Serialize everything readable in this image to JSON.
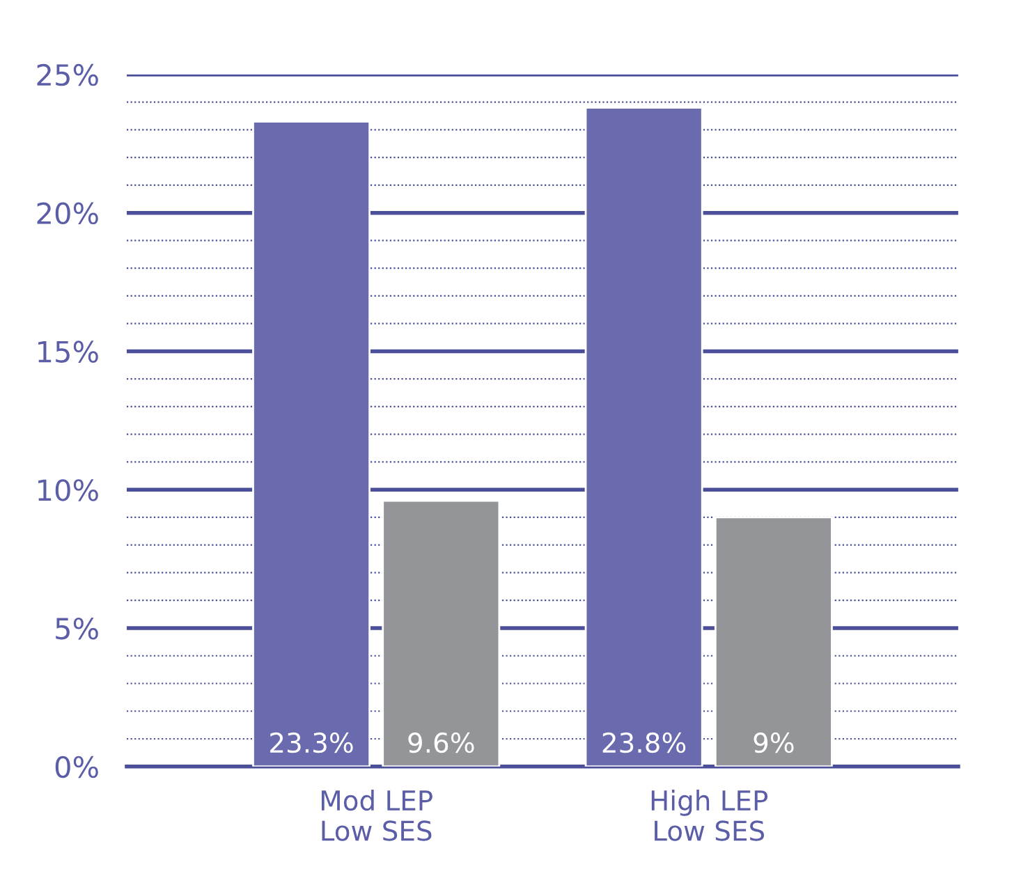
{
  "chart_data": {
    "type": "bar",
    "categories": [
      "Mod LEP\nLow SES",
      "High LEP\nLow SES"
    ],
    "series": [
      {
        "color": "#6a6aae",
        "values": [
          23.3,
          23.8
        ],
        "value_labels": [
          "23.3%",
          "23.8%"
        ]
      },
      {
        "color": "#939598",
        "values": [
          9.6,
          9
        ],
        "value_labels": [
          "9.6%",
          "9%"
        ]
      }
    ],
    "ylim": [
      0,
      25
    ],
    "yticks": [
      {
        "value": 0,
        "label": "0%"
      },
      {
        "value": 1,
        "label": null
      },
      {
        "value": 2,
        "label": null
      },
      {
        "value": 3,
        "label": null
      },
      {
        "value": 4,
        "label": null
      },
      {
        "value": 5,
        "label": "5%"
      },
      {
        "value": 6,
        "label": null
      },
      {
        "value": 7,
        "label": null
      },
      {
        "value": 8,
        "label": null
      },
      {
        "value": 9,
        "label": null
      },
      {
        "value": 10,
        "label": "10%"
      },
      {
        "value": 11,
        "label": null
      },
      {
        "value": 12,
        "label": null
      },
      {
        "value": 13,
        "label": null
      },
      {
        "value": 14,
        "label": null
      },
      {
        "value": 15,
        "label": "15%"
      },
      {
        "value": 16,
        "label": null
      },
      {
        "value": 17,
        "label": null
      },
      {
        "value": 18,
        "label": null
      },
      {
        "value": 19,
        "label": null
      },
      {
        "value": 20,
        "label": "20%"
      },
      {
        "value": 21,
        "label": null
      },
      {
        "value": 22,
        "label": null
      },
      {
        "value": 23,
        "label": null
      },
      {
        "value": 24,
        "label": null
      },
      {
        "value": 25,
        "label": "25%"
      }
    ],
    "grid": "y"
  }
}
